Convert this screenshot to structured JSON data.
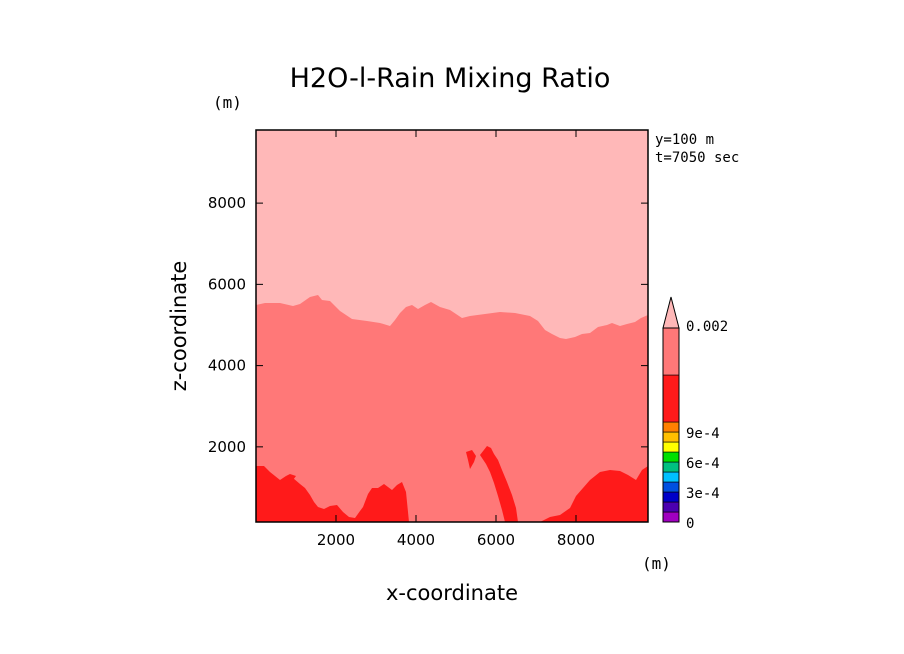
{
  "chart_data": {
    "type": "contour",
    "title": "H2O-l-Rain Mixing Ratio",
    "xlabel": "x-coordinate",
    "ylabel": "z-coordinate",
    "x_unit": "(m)",
    "y_unit": "(m)",
    "xlim": [
      0,
      9800
    ],
    "ylim": [
      150,
      9800
    ],
    "x_ticks": [
      2000,
      4000,
      6000,
      8000
    ],
    "y_ticks": [
      2000,
      4000,
      6000,
      8000
    ],
    "annotations": [
      "y=100 m",
      "t=7050 sec"
    ],
    "colorbar": {
      "labels": [
        "0.002",
        "9e-4",
        "6e-4",
        "3e-4",
        "0"
      ],
      "levels": [
        0,
        0.0001,
        0.0002,
        0.0003,
        0.0004,
        0.0005,
        0.0006,
        0.0007,
        0.0008,
        0.0009,
        0.001,
        0.0015,
        0.002
      ],
      "colors": [
        "#a000c0",
        "#4b00b0",
        "#0000c8",
        "#0050e0",
        "#00c0ff",
        "#00c080",
        "#00e000",
        "#ffff00",
        "#ffc000",
        "#ff8000",
        "#ff1a1a",
        "#ff7878"
      ],
      "extend_color": "#ffb8b8"
    },
    "regions": [
      {
        "level": "> 0.002",
        "color": "#ffb8b8",
        "boundary": "upper region above z ≈ 4700–5800"
      },
      {
        "level": "0.0015–0.002",
        "color": "#ff7878",
        "boundary": "mid region between bottom cells and z ≈ 5000–5800"
      },
      {
        "level": "0.001–0.0015",
        "color": "#ff1a1a",
        "boundary": "near-surface cells below z ≈ 1500"
      }
    ],
    "upper_boundary": [
      [
        0,
        5400
      ],
      [
        500,
        5500
      ],
      [
        1000,
        5600
      ],
      [
        1500,
        5800
      ],
      [
        2000,
        5600
      ],
      [
        2500,
        5500
      ],
      [
        3000,
        5300
      ],
      [
        3500,
        5100
      ],
      [
        4000,
        5300
      ],
      [
        4500,
        5400
      ],
      [
        5000,
        5300
      ],
      [
        5500,
        5300
      ],
      [
        6000,
        5300
      ],
      [
        6500,
        5400
      ],
      [
        7000,
        5000
      ],
      [
        7500,
        4700
      ],
      [
        8000,
        4800
      ],
      [
        8500,
        5100
      ],
      [
        9000,
        5000
      ],
      [
        9500,
        5200
      ],
      [
        9800,
        5300
      ]
    ]
  }
}
